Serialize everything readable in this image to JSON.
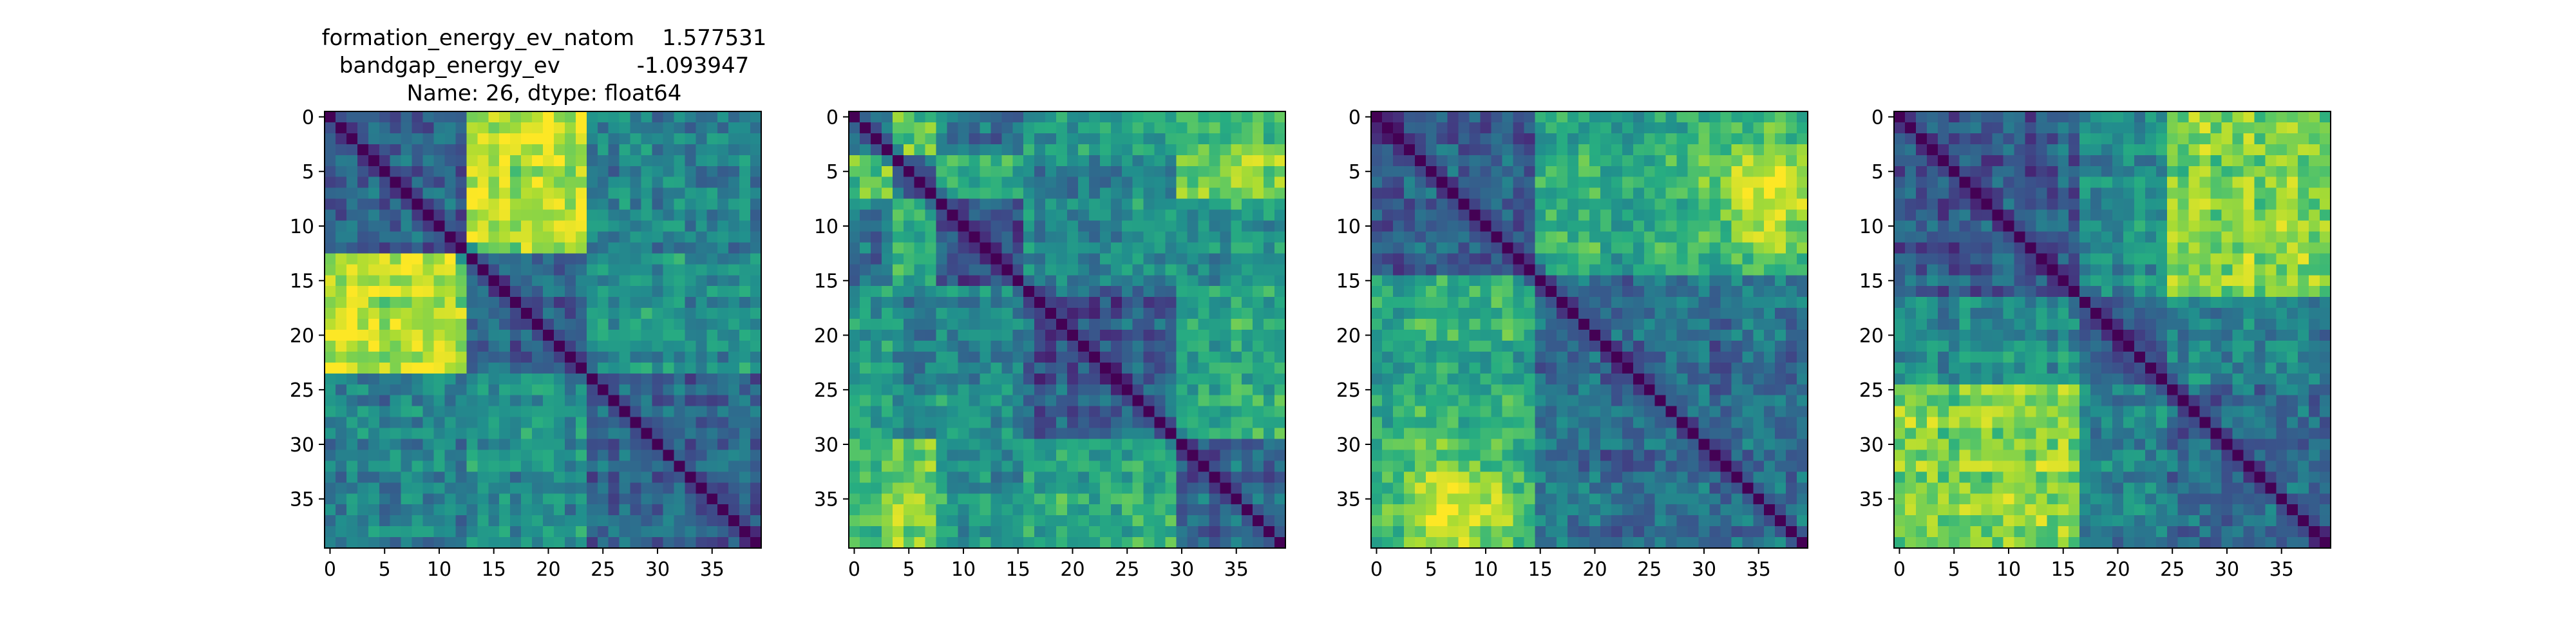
{
  "figure": {
    "title_lines": [
      "formation_energy_ev_natom    1.577531",
      "bandgap_energy_ev           -1.093947",
      "Name: 26, dtype: float64"
    ]
  },
  "chart_data": [
    {
      "type": "heatmap",
      "title": "formation_energy_ev_natom    1.577531\nbandgap_energy_ev           -1.093947\nName: 26, dtype: float64",
      "rows": 40,
      "cols": 40,
      "colormap": "viridis",
      "diagonal": 0,
      "xticks": [
        0,
        5,
        10,
        15,
        20,
        25,
        30,
        35
      ],
      "yticks": [
        0,
        5,
        10,
        15,
        20,
        25,
        30,
        35
      ],
      "blocks": [
        [
          0,
          13
        ],
        [
          13,
          24
        ],
        [
          24,
          40
        ]
      ],
      "block_levels": [
        [
          0.3,
          0.88,
          0.45
        ],
        [
          0.88,
          0.3,
          0.5
        ],
        [
          0.45,
          0.5,
          0.35
        ]
      ],
      "grid": false
    },
    {
      "type": "heatmap",
      "title": "",
      "rows": 40,
      "cols": 40,
      "colormap": "viridis",
      "diagonal": 0,
      "xticks": [
        0,
        5,
        10,
        15,
        20,
        25,
        30,
        35
      ],
      "yticks": [
        0,
        5,
        10,
        15,
        20,
        25,
        30,
        35
      ],
      "blocks": [
        [
          0,
          4
        ],
        [
          4,
          8
        ],
        [
          8,
          16
        ],
        [
          16,
          30
        ],
        [
          30,
          40
        ]
      ],
      "block_levels": [
        [
          0.45,
          0.75,
          0.4,
          0.55,
          0.7
        ],
        [
          0.75,
          0.35,
          0.65,
          0.45,
          0.8
        ],
        [
          0.4,
          0.65,
          0.3,
          0.5,
          0.55
        ],
        [
          0.55,
          0.45,
          0.5,
          0.3,
          0.6
        ],
        [
          0.7,
          0.8,
          0.55,
          0.6,
          0.35
        ]
      ],
      "grid": false
    },
    {
      "type": "heatmap",
      "title": "",
      "rows": 40,
      "cols": 40,
      "colormap": "viridis",
      "diagonal": 0,
      "xticks": [
        0,
        5,
        10,
        15,
        20,
        25,
        30,
        35
      ],
      "yticks": [
        0,
        5,
        10,
        15,
        20,
        25,
        30,
        35
      ],
      "blocks": [
        [
          0,
          15
        ],
        [
          15,
          40
        ]
      ],
      "block_levels": [
        [
          0.3,
          0.6
        ],
        [
          0.6,
          0.35
        ]
      ],
      "hotspots": [
        {
          "x": 36,
          "y": 7,
          "amp": 0.35,
          "sigma": 4
        },
        {
          "x": 7,
          "y": 36,
          "amp": 0.35,
          "sigma": 4
        }
      ],
      "grid": false
    },
    {
      "type": "heatmap",
      "title": "",
      "rows": 40,
      "cols": 40,
      "colormap": "viridis",
      "diagonal": 0,
      "xticks": [
        0,
        5,
        10,
        15,
        20,
        25,
        30,
        35
      ],
      "yticks": [
        0,
        5,
        10,
        15,
        20,
        25,
        30,
        35
      ],
      "blocks": [
        [
          0,
          17
        ],
        [
          17,
          25
        ],
        [
          25,
          40
        ]
      ],
      "block_levels": [
        [
          0.3,
          0.5,
          0.82
        ],
        [
          0.5,
          0.3,
          0.45
        ],
        [
          0.82,
          0.45,
          0.35
        ]
      ],
      "grid": false
    }
  ]
}
